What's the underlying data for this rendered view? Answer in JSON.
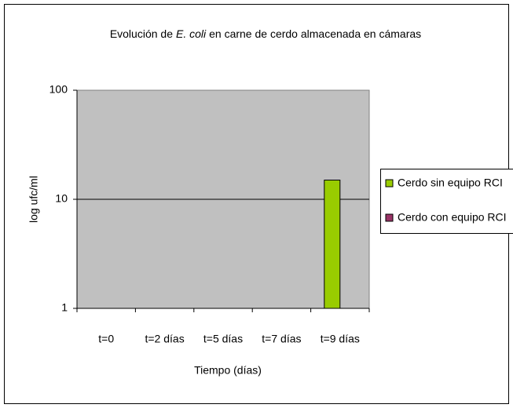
{
  "chart_data": {
    "type": "bar",
    "title": [
      "Evolución de",
      "E. coli",
      "en carne de cerdo almacenada en cámaras"
    ],
    "x_label": "Tiempo (días)",
    "y_label": "log ufc/ml",
    "categories": [
      "t=0",
      "t=2 días",
      "t=5 días",
      "t=7 días",
      "t=9 días"
    ],
    "series": [
      {
        "name": "Cerdo sin equipo RCI",
        "color": "#99cc00",
        "values": [
          null,
          null,
          null,
          null,
          15
        ]
      },
      {
        "name": "Cerdo con equipo RCI",
        "color": "#993366",
        "values": [
          null,
          null,
          null,
          null,
          null
        ]
      }
    ],
    "log_y": true,
    "ylim": [
      1,
      100
    ],
    "yticks": [
      1,
      10,
      100
    ],
    "grid": true,
    "legend": "right"
  }
}
